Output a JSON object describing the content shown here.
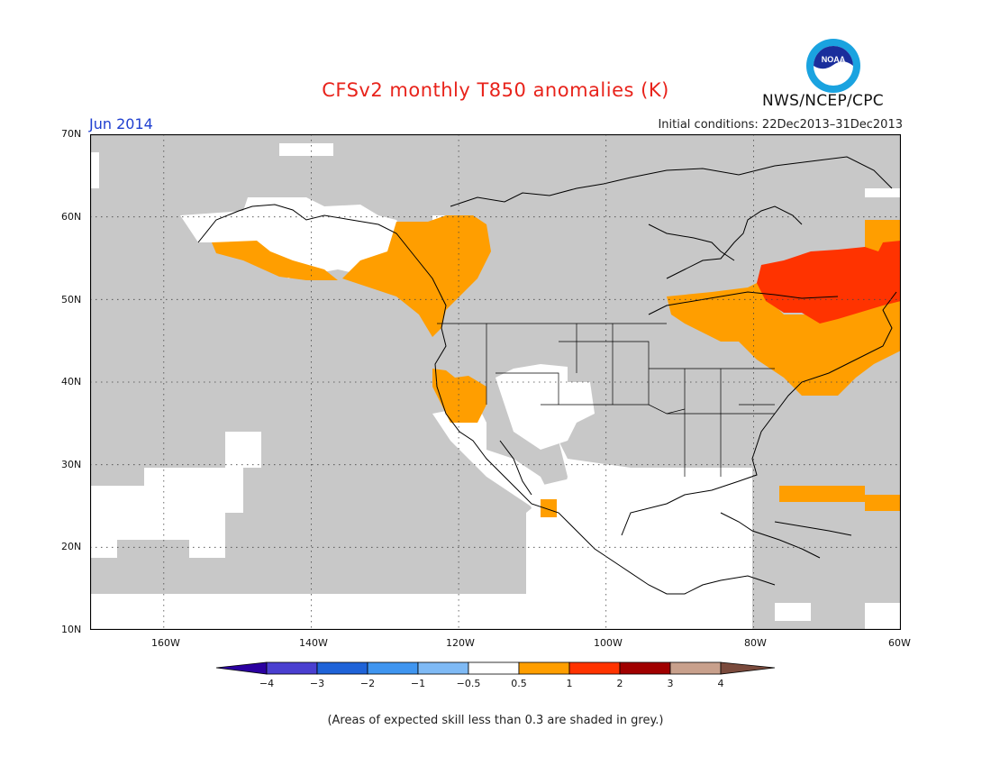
{
  "title": "CFSv2 monthly T850 anomalies (K)",
  "period": "Jun 2014",
  "initial_conditions": "Initial conditions: 22Dec2013–31Dec2013",
  "agency": "NWS/NCEP/CPC",
  "logo_text": "NOAA",
  "footnote": "(Areas of expected skill less than 0.3 are shaded in grey.)",
  "map": {
    "lat_labels": [
      "70N",
      "60N",
      "50N",
      "40N",
      "30N",
      "20N",
      "10N"
    ],
    "lon_labels": [
      "160W",
      "140W",
      "120W",
      "100W",
      "80W",
      "60W"
    ],
    "lat_range": [
      10,
      70
    ],
    "lon_range": [
      -170,
      -60
    ],
    "colors": {
      "low_skill_grey": "#c8c8c8",
      "anom_0_5_to_1": "#ff9e00",
      "anom_1_to_2": "#ff3300",
      "neutral": "#ffffff"
    }
  },
  "legend": {
    "labels": [
      "−4",
      "−3",
      "−2",
      "−1",
      "−0.5",
      "0.5",
      "1",
      "2",
      "3",
      "4"
    ],
    "colors": [
      "#2b00a0",
      "#4a3fd0",
      "#1f63d8",
      "#3f95f0",
      "#7fbaf5",
      "#ffffff",
      "#ff9e00",
      "#ff3300",
      "#a00000",
      "#c8a08c",
      "#7a4a3c"
    ]
  }
}
